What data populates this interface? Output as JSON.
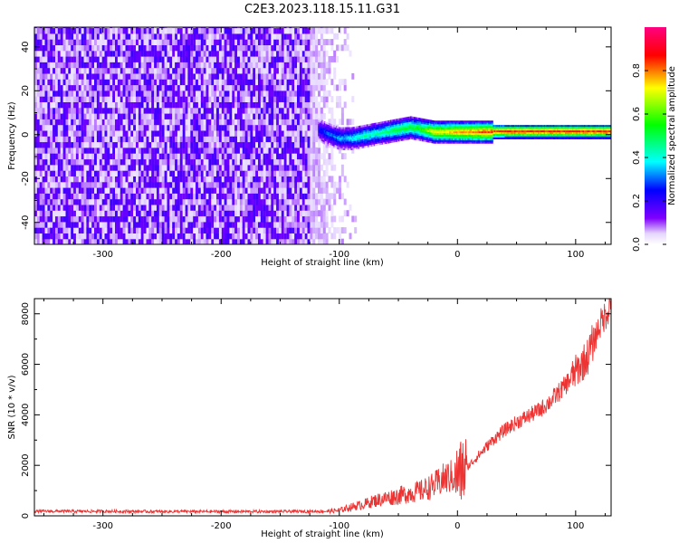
{
  "title": "C2E3.2023.118.15.11.G31",
  "chart_data": [
    {
      "type": "heatmap",
      "xlabel": "Height of straight line (km)",
      "ylabel": "Frequency (Hz)",
      "xlim": [
        -358,
        130
      ],
      "ylim": [
        -50,
        49
      ],
      "x_ticks": [
        -300,
        -200,
        -100,
        0,
        100
      ],
      "y_ticks": [
        -40,
        -20,
        0,
        20,
        40
      ],
      "colorbar": {
        "label": "Normalized spectral amplitude",
        "range": [
          0,
          1
        ],
        "ticks": [
          0.0,
          0.2,
          0.4,
          0.6,
          0.8
        ],
        "colormap": [
          "#ffffff",
          "#e5d5ff",
          "#8000ff",
          "#0000ff",
          "#00ffff",
          "#00ff00",
          "#ffff00",
          "#ff0000",
          "#ff0080"
        ]
      },
      "noise_region_x": [
        -358,
        -100
      ],
      "signal_ridge": [
        {
          "x": -118,
          "f": 2,
          "amp": 0.25
        },
        {
          "x": -110,
          "f": 0,
          "amp": 0.3
        },
        {
          "x": -100,
          "f": -2,
          "amp": 0.35
        },
        {
          "x": -90,
          "f": -2,
          "amp": 0.4
        },
        {
          "x": -80,
          "f": -1,
          "amp": 0.45
        },
        {
          "x": -70,
          "f": 0,
          "amp": 0.45
        },
        {
          "x": -60,
          "f": 1,
          "amp": 0.5
        },
        {
          "x": -50,
          "f": 2,
          "amp": 0.55
        },
        {
          "x": -40,
          "f": 3,
          "amp": 0.55
        },
        {
          "x": -30,
          "f": 2,
          "amp": 0.6
        },
        {
          "x": -20,
          "f": 1,
          "amp": 0.75
        },
        {
          "x": -10,
          "f": 1,
          "amp": 0.75
        },
        {
          "x": 0,
          "f": 1,
          "amp": 0.8
        },
        {
          "x": 20,
          "f": 1,
          "amp": 0.85
        },
        {
          "x": 40,
          "f": 1,
          "amp": 0.9
        },
        {
          "x": 80,
          "f": 1,
          "amp": 0.9
        },
        {
          "x": 130,
          "f": 1,
          "amp": 0.9
        }
      ]
    },
    {
      "type": "line",
      "xlabel": "Height of straight line (km)",
      "ylabel": "SNR (10 * v/v)",
      "xlim": [
        -358,
        130
      ],
      "ylim": [
        0,
        8600
      ],
      "x_ticks": [
        -300,
        -200,
        -100,
        0,
        100
      ],
      "y_ticks": [
        0,
        2000,
        4000,
        6000,
        8000
      ],
      "color": "#ee3333",
      "series": [
        {
          "x": [
            -358,
            -300,
            -250,
            -200,
            -150,
            -110,
            -100,
            -90,
            -80,
            -70,
            -60,
            -50,
            -40,
            -30,
            -20,
            -10,
            0,
            10,
            20,
            30,
            40,
            50,
            60,
            70,
            80,
            90,
            100,
            110,
            120,
            130
          ],
          "values": [
            180,
            180,
            170,
            170,
            170,
            180,
            220,
            350,
            450,
            600,
            700,
            800,
            900,
            1000,
            1200,
            1500,
            1600,
            2000,
            2500,
            3000,
            3400,
            3700,
            3950,
            4200,
            4600,
            5100,
            5700,
            6300,
            7500,
            8400
          ]
        }
      ]
    }
  ]
}
